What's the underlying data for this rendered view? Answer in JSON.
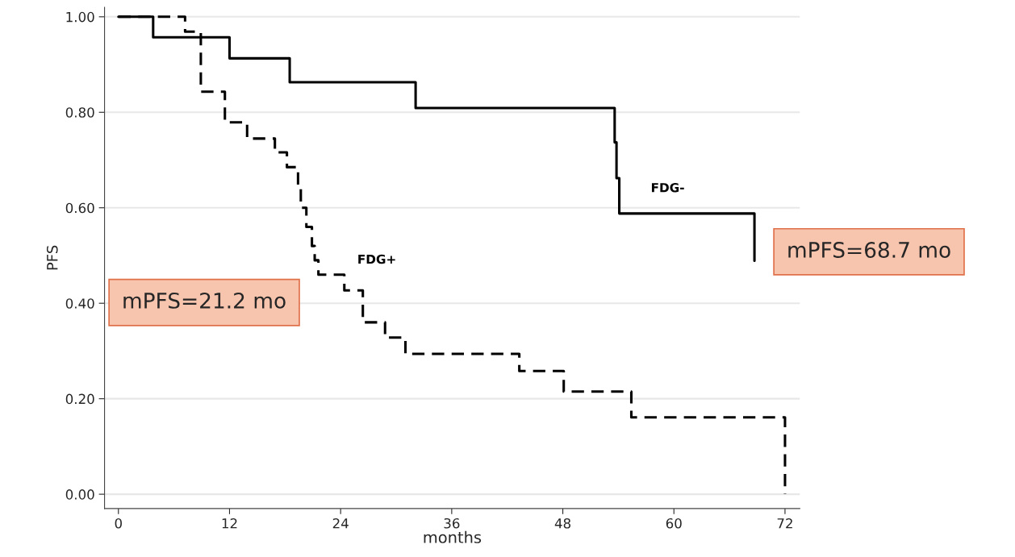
{
  "chart_data": {
    "type": "step",
    "xlabel": "months",
    "ylabel": "PFS",
    "xlim": [
      -1.5,
      73.6
    ],
    "xticks": [
      0,
      12,
      24,
      36,
      48,
      60,
      72
    ],
    "ylim": [
      -0.03,
      1.02
    ],
    "yticks": [
      {
        "value": 0,
        "label": "0.00"
      },
      {
        "value": 0.2,
        "label": "0.20"
      },
      {
        "value": 0.4,
        "label": "0.40"
      },
      {
        "value": 0.6,
        "label": "0.60"
      },
      {
        "value": 0.8,
        "label": "0.80"
      },
      {
        "value": 1,
        "label": "1.00"
      }
    ],
    "grid": "y",
    "legend": false,
    "marker": "none",
    "series": [
      {
        "name": "FDG-",
        "color": "#000000",
        "line_style": "solid",
        "x": [
          0,
          3.75,
          12,
          18.5,
          32.1,
          53.6,
          53.8,
          54.1,
          68.7
        ],
        "values": [
          1,
          0.957,
          0.913,
          0.863,
          0.809,
          0.737,
          0.662,
          0.588,
          0.489
        ]
      },
      {
        "name": "FDG+",
        "color": "#000000",
        "line_style": "dashed",
        "x": [
          0,
          7.2,
          8.9,
          11.5,
          13.9,
          16.9,
          18.2,
          19.4,
          19.7,
          20.3,
          20.9,
          21.2,
          21.6,
          24.4,
          26.4,
          28.8,
          31.0,
          43.3,
          48.1,
          55.4,
          72
        ],
        "values": [
          1,
          0.969,
          0.843,
          0.779,
          0.745,
          0.716,
          0.685,
          0.64,
          0.6,
          0.56,
          0.52,
          0.49,
          0.46,
          0.427,
          0.36,
          0.328,
          0.294,
          0.258,
          0.215,
          0.161,
          0
        ]
      }
    ],
    "annotations": [
      "mPFS=21.2 mo",
      "mPFS=68.7 mo"
    ]
  }
}
